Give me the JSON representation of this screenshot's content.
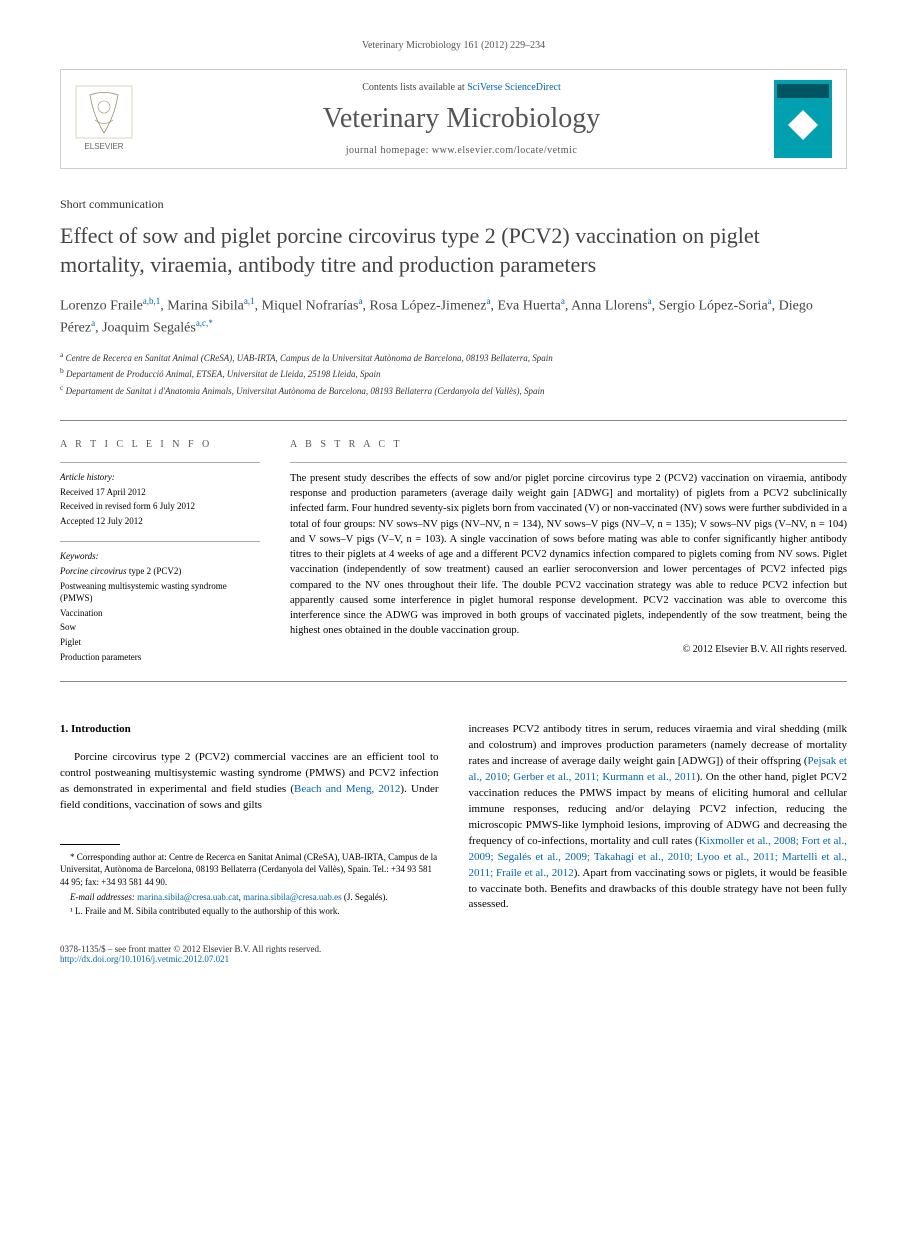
{
  "journal_ref": "Veterinary Microbiology 161 (2012) 229–234",
  "header": {
    "contents_prefix": "Contents lists available at ",
    "contents_link": "SciVerse ScienceDirect",
    "journal_name": "Veterinary Microbiology",
    "homepage_prefix": "journal homepage: ",
    "homepage_url": "www.elsevier.com/locate/vetmic",
    "elsevier_label": "ELSEVIER"
  },
  "article_type": "Short communication",
  "title": "Effect of sow and piglet porcine circovirus type 2 (PCV2) vaccination on piglet mortality, viraemia, antibody titre and production parameters",
  "authors_html": "Lorenzo Fraile|a,b,1|, Marina Sibila|a,1|, Miquel Nofrarías|a|, Rosa López-Jimenez|a|, Eva Huerta|a|, Anna Llorens|a|, Sergio López-Soria|a|, Diego Pérez|a|, Joaquim Segalés|a,c,*|",
  "affiliations": {
    "a": "Centre de Recerca en Sanitat Animal (CReSA), UAB-IRTA, Campus de la Universitat Autònoma de Barcelona, 08193 Bellaterra, Spain",
    "b": "Departament de Producció Animal, ETSEA, Universitat de Lleida, 25198 Lleida, Spain",
    "c": "Departament de Sanitat i d'Anatomia Animals, Universitat Autònoma de Barcelona, 08193 Bellaterra (Cerdanyola del Vallès), Spain"
  },
  "article_info": {
    "heading": "A R T I C L E   I N F O",
    "history_heading": "Article history:",
    "received": "Received 17 April 2012",
    "revised": "Received in revised form 6 July 2012",
    "accepted": "Accepted 12 July 2012",
    "keywords_heading": "Keywords:",
    "keywords": [
      "Porcine circovirus type 2 (PCV2)",
      "Postweaning multisystemic wasting syndrome (PMWS)",
      "Vaccination",
      "Sow",
      "Piglet",
      "Production parameters"
    ]
  },
  "abstract": {
    "heading": "A B S T R A C T",
    "text": "The present study describes the effects of sow and/or piglet porcine circovirus type 2 (PCV2) vaccination on viraemia, antibody response and production parameters (average daily weight gain [ADWG] and mortality) of piglets from a PCV2 subclinically infected farm. Four hundred seventy-six piglets born from vaccinated (V) or non-vaccinated (NV) sows were further subdivided in a total of four groups: NV sows–NV pigs (NV–NV, n = 134), NV sows–V pigs (NV–V, n = 135); V sows–NV pigs (V–NV, n = 104) and V sows–V pigs (V–V, n = 103). A single vaccination of sows before mating was able to confer significantly higher antibody titres to their piglets at 4 weeks of age and a different PCV2 dynamics infection compared to piglets coming from NV sows. Piglet vaccination (independently of sow treatment) caused an earlier seroconversion and lower percentages of PCV2 infected pigs compared to the NV ones throughout their life. The double PCV2 vaccination strategy was able to reduce PCV2 infection but apparently caused some interference in piglet humoral response development. PCV2 vaccination was able to overcome this interference since the ADWG was improved in both groups of vaccinated piglets, independently of the sow treatment, being the highest ones obtained in the double vaccination group.",
    "copyright": "© 2012 Elsevier B.V. All rights reserved."
  },
  "body": {
    "section_heading": "1.  Introduction",
    "left_para": "Porcine circovirus type 2 (PCV2) commercial vaccines are an efficient tool to control postweaning multisystemic wasting syndrome (PMWS) and PCV2 infection as demonstrated in experimental and field studies (",
    "left_ref1": "Beach and Meng, 2012",
    "left_para2": "). Under field conditions, vaccination of sows and gilts",
    "right_para1": "increases PCV2 antibody titres in serum, reduces viraemia and viral shedding (milk and colostrum) and improves production parameters (namely decrease of mortality rates and increase of average daily weight gain [ADWG]) of their offspring (",
    "right_ref1": "Pejsak et al., 2010; Gerber et al., 2011; Kurmann et al., 2011",
    "right_para2": "). On the other hand, piglet PCV2 vaccination reduces the PMWS impact by means of eliciting humoral and cellular immune responses, reducing and/or delaying PCV2 infection, reducing the microscopic PMWS-like lymphoid lesions, improving of ADWG and decreasing the frequency of co-infections, mortality and cull rates (",
    "right_ref2": "Kixmoller et al., 2008; Fort et al., 2009; Segalés et al., 2009; Takahagi et al., 2010; Lyoo et al., 2011; Martelli et al., 2011; Fraile et al., 2012",
    "right_para3": "). Apart from vaccinating sows or piglets, it would be feasible to vaccinate both. Benefits and drawbacks of this double strategy have not been fully assessed."
  },
  "footnotes": {
    "corresponding": "* Corresponding author at: Centre de Recerca en Sanitat Animal (CReSA), UAB-IRTA, Campus de la Universitat, Autònoma de Barcelona, 08193 Bellaterra (Cerdanyola del Vallès), Spain. Tel.: +34 93 581 44 95; fax: +34 93 581 44 90.",
    "email_label": "E-mail addresses:",
    "email1": "marina.sibila@cresa.uab.cat",
    "email2": "marina.sibila@cresa.uab.es",
    "email_suffix": " (J. Segalés).",
    "note1": "¹ L. Fraile and M. Sibila contributed equally to the authorship of this work."
  },
  "footer": {
    "issn_line": "0378-1135/$ – see front matter © 2012 Elsevier B.V. All rights reserved.",
    "doi": "http://dx.doi.org/10.1016/j.vetmic.2012.07.021"
  },
  "colors": {
    "link": "#0066aa",
    "heading": "#555555",
    "text": "#000000",
    "border": "#cccccc"
  }
}
